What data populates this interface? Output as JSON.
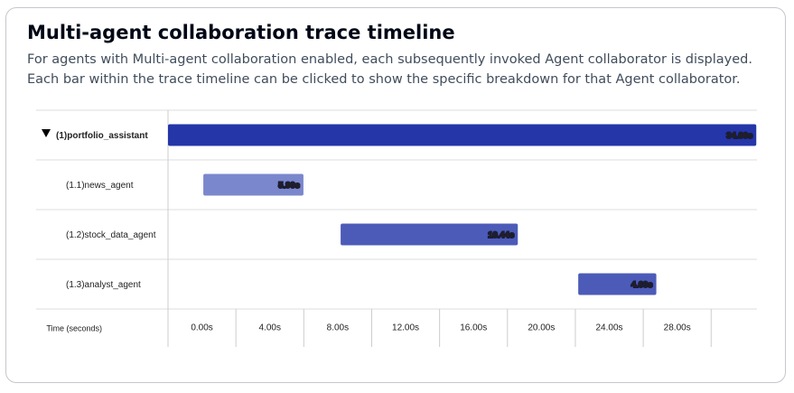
{
  "chart_data": {
    "type": "timeline",
    "title": "Multi-agent collaboration trace timeline",
    "subtitle": "For agents with Multi-agent collaboration enabled, each subsequently invoked Agent collaborator is displayed. Each bar within the trace timeline can be clicked to show the specific breakdown for that Agent collaborator.",
    "categories": [
      "(1)portfolio_assistant",
      "(1.1)news_agent",
      "(1.2)stock_data_agent",
      "(1.3)analyst_agent"
    ],
    "starts": [
      0,
      2.08,
      10.17,
      24.17
    ],
    "values": [
      34.66,
      5.9,
      10.44,
      4.6
    ],
    "value_labels": [
      "34.66s",
      "5.90s",
      "10.44s",
      "4.60s"
    ],
    "colors": [
      "#2436a8",
      "#7b87cc",
      "#4c5bb8",
      "#4c5bb8"
    ],
    "x_label": "Time (seconds)",
    "xlim": [
      0,
      34.7
    ],
    "xticks": [
      {
        "value": 0,
        "label": "0.00s"
      },
      {
        "value": 4,
        "label": "4.00s"
      },
      {
        "value": 8,
        "label": "8.00s"
      },
      {
        "value": 12,
        "label": "12.00s"
      },
      {
        "value": 16,
        "label": "16.00s"
      },
      {
        "value": 20,
        "label": "20.00s"
      },
      {
        "value": 24,
        "label": "24.00s"
      },
      {
        "value": 28,
        "label": "28.00s"
      }
    ],
    "grid": true
  }
}
